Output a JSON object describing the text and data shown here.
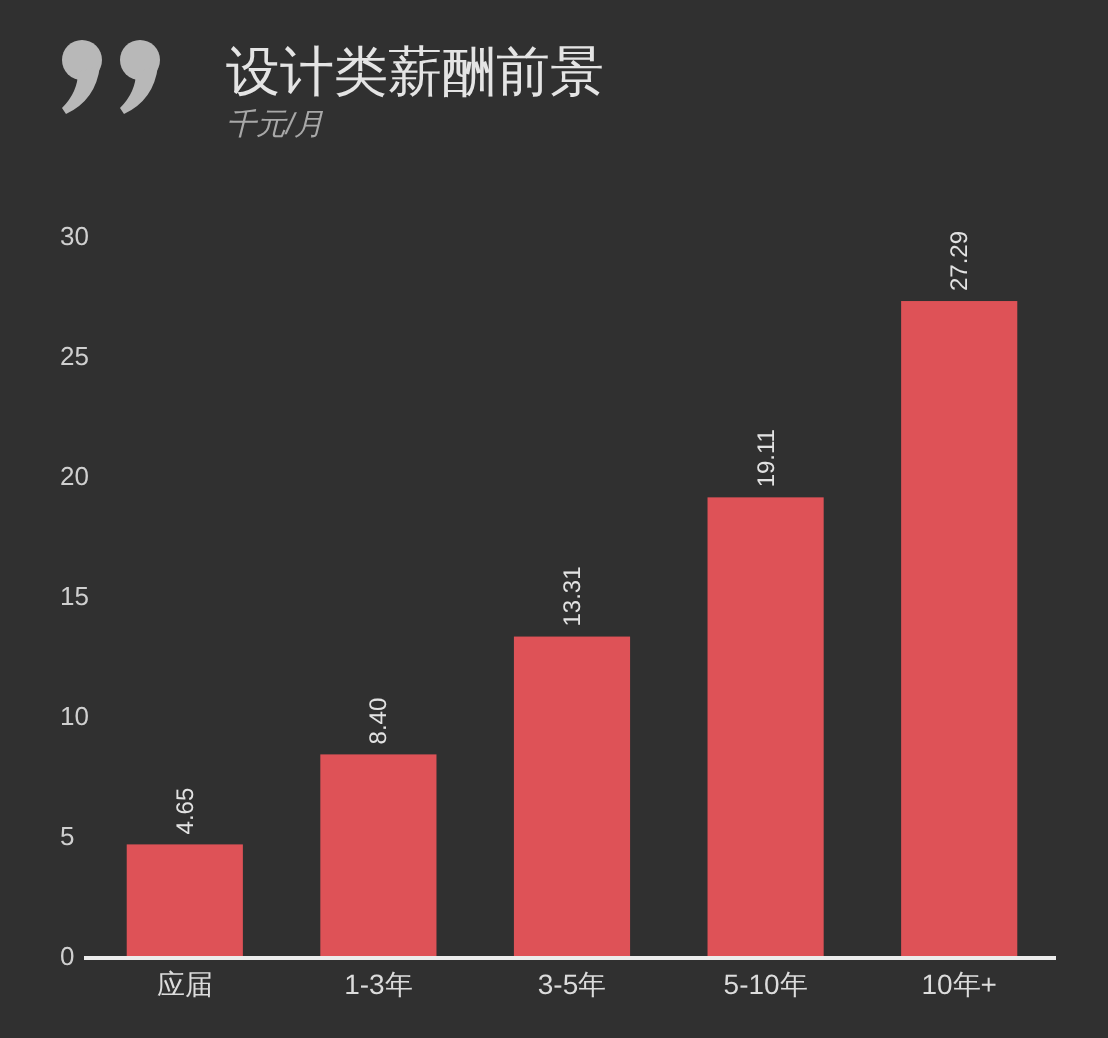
{
  "chart_data": {
    "type": "bar",
    "title": "设计类薪酬前景",
    "subtitle": "千元/月",
    "categories": [
      "应届",
      "1-3年",
      "3-5年",
      "5-10年",
      "10年+"
    ],
    "values": [
      4.65,
      8.4,
      13.31,
      19.11,
      27.29
    ],
    "value_labels": [
      "4.65",
      "8.40",
      "13.31",
      "19.11",
      "27.29"
    ],
    "color": "#de5257",
    "ylim": [
      0,
      30
    ],
    "yticks": [
      0,
      5,
      10,
      15,
      20,
      25,
      30
    ]
  }
}
